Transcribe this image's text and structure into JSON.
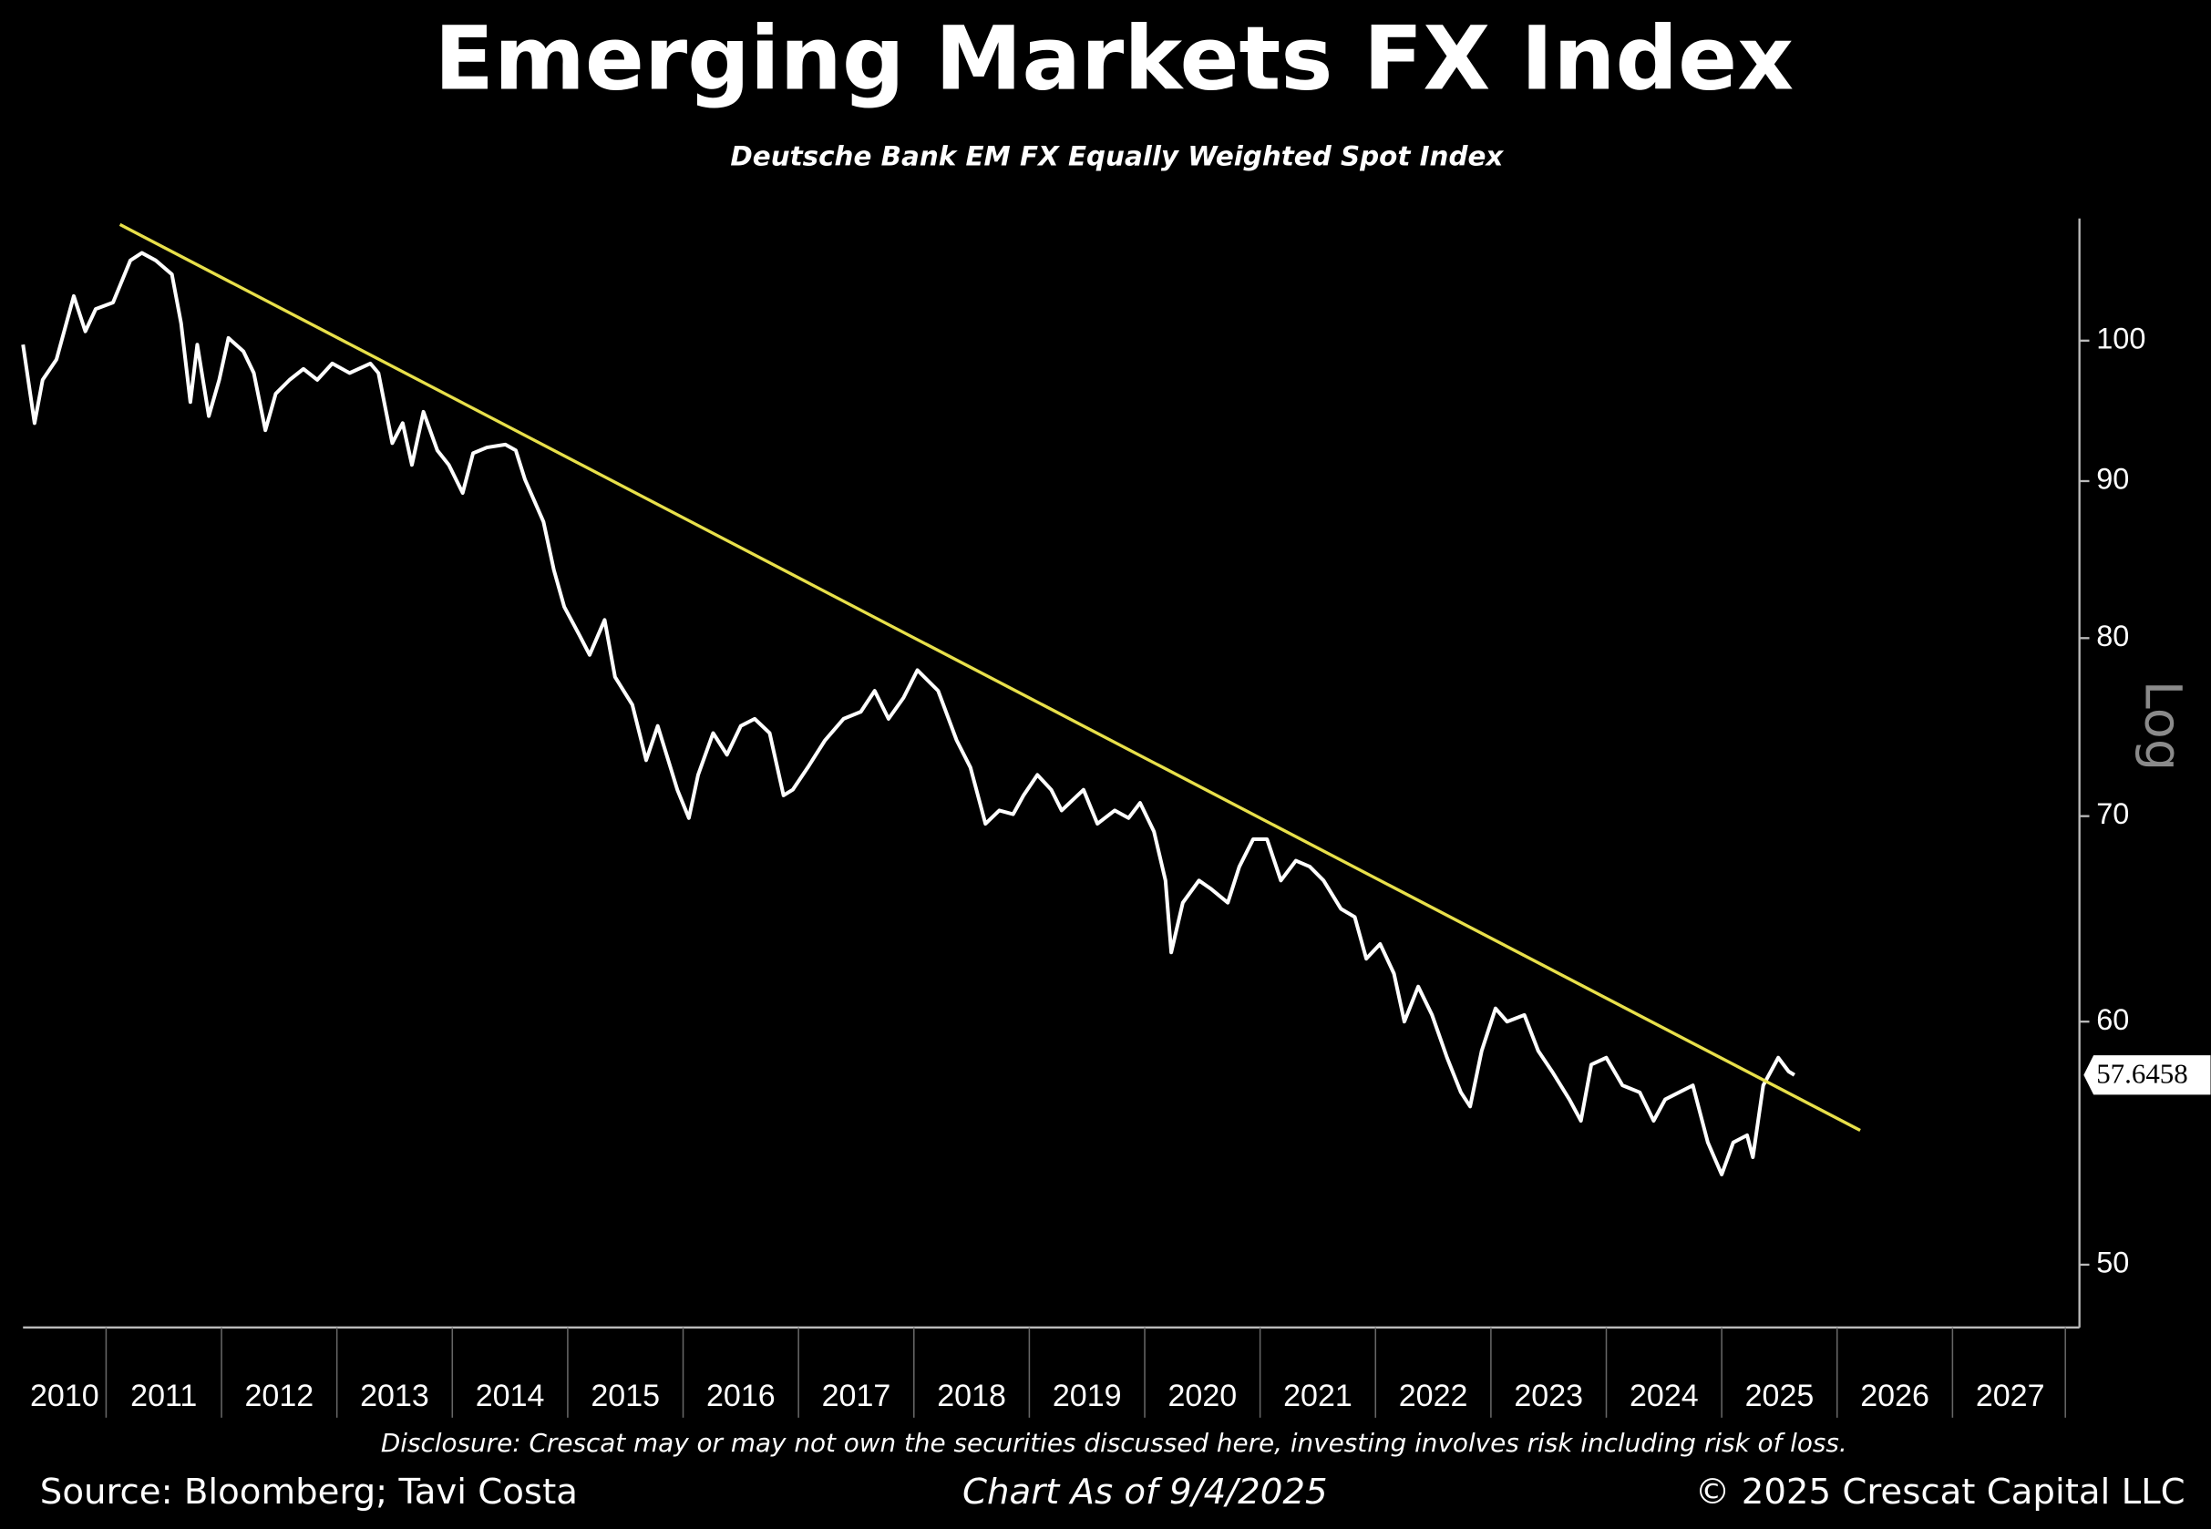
{
  "chart_data": {
    "type": "line",
    "title": "Emerging Markets FX Index",
    "subtitle": "Deutsche Bank EM FX Equally Weighted Spot Index",
    "y_axis_label": "Log",
    "log_scale": true,
    "grid": false,
    "x": [
      2010.28,
      2010.38,
      2010.45,
      2010.57,
      2010.72,
      2010.82,
      2010.91,
      2011.06,
      2011.21,
      2011.31,
      2011.43,
      2011.57,
      2011.65,
      2011.73,
      2011.79,
      2011.89,
      2011.98,
      2012.06,
      2012.19,
      2012.28,
      2012.38,
      2012.47,
      2012.59,
      2012.71,
      2012.83,
      2012.96,
      2013.11,
      2013.29,
      2013.36,
      2013.48,
      2013.57,
      2013.65,
      2013.75,
      2013.87,
      2013.97,
      2014.09,
      2014.18,
      2014.3,
      2014.46,
      2014.55,
      2014.63,
      2014.79,
      2014.88,
      2014.97,
      2015.1,
      2015.19,
      2015.32,
      2015.41,
      2015.56,
      2015.68,
      2015.78,
      2015.95,
      2016.05,
      2016.13,
      2016.26,
      2016.38,
      2016.5,
      2016.62,
      2016.75,
      2016.87,
      2016.95,
      2017.08,
      2017.23,
      2017.39,
      2017.54,
      2017.66,
      2017.78,
      2017.91,
      2018.03,
      2018.21,
      2018.37,
      2018.49,
      2018.62,
      2018.74,
      2018.86,
      2018.95,
      2019.07,
      2019.19,
      2019.28,
      2019.47,
      2019.59,
      2019.74,
      2019.86,
      2019.96,
      2020.08,
      2020.18,
      2020.23,
      2020.33,
      2020.47,
      2020.57,
      2020.72,
      2020.82,
      2020.94,
      2021.06,
      2021.18,
      2021.31,
      2021.43,
      2021.55,
      2021.7,
      2021.82,
      2021.92,
      2022.04,
      2022.16,
      2022.25,
      2022.37,
      2022.49,
      2022.62,
      2022.74,
      2022.82,
      2022.92,
      2023.04,
      2023.14,
      2023.29,
      2023.41,
      2023.53,
      2023.68,
      2023.78,
      2023.87,
      2024.0,
      2024.14,
      2024.29,
      2024.41,
      2024.51,
      2024.63,
      2024.75,
      2024.88,
      2025.0,
      2025.1,
      2025.22,
      2025.27,
      2025.36,
      2025.49,
      2025.58,
      2025.63
    ],
    "series": [
      {
        "color": "#ffffff",
        "values": [
          99.7,
          94.0,
          97.1,
          98.6,
          103.4,
          100.7,
          102.4,
          102.9,
          106.2,
          106.8,
          106.2,
          105.1,
          101.3,
          95.5,
          99.7,
          94.5,
          97.1,
          100.2,
          99.2,
          97.6,
          93.5,
          96.1,
          97.1,
          97.9,
          97.1,
          98.3,
          97.6,
          98.3,
          97.6,
          92.6,
          94.0,
          91.1,
          94.8,
          92.1,
          91.1,
          89.2,
          91.9,
          92.3,
          92.5,
          92.1,
          90.1,
          87.3,
          84.2,
          81.9,
          80.2,
          79.0,
          81.1,
          77.7,
          76.1,
          73.0,
          74.9,
          71.4,
          69.9,
          72.2,
          74.5,
          73.3,
          74.9,
          75.3,
          74.5,
          71.1,
          71.4,
          72.6,
          74.1,
          75.3,
          75.7,
          76.9,
          75.3,
          76.5,
          78.1,
          76.9,
          74.1,
          72.6,
          69.6,
          70.3,
          70.1,
          71.1,
          72.2,
          71.4,
          70.3,
          71.4,
          69.6,
          70.3,
          69.9,
          70.7,
          69.2,
          66.7,
          63.2,
          65.6,
          66.7,
          66.3,
          65.6,
          67.4,
          68.8,
          68.8,
          66.7,
          67.7,
          67.4,
          66.7,
          65.3,
          64.9,
          62.9,
          63.6,
          62.2,
          60.0,
          61.6,
          60.3,
          58.4,
          56.9,
          56.3,
          58.7,
          60.6,
          60.0,
          60.3,
          58.7,
          57.8,
          56.6,
          55.7,
          58.1,
          58.4,
          57.2,
          56.9,
          55.7,
          56.6,
          56.9,
          57.2,
          54.8,
          53.5,
          54.8,
          55.1,
          54.2,
          57.2,
          58.4,
          57.8,
          57.6458
        ]
      }
    ],
    "trendline": {
      "color": "#e8e04a",
      "x": [
        2011.12,
        2026.2
      ],
      "values": [
        109.1,
        55.3
      ]
    },
    "xlim": [
      2010.28,
      2028.1
    ],
    "xticks": [
      2010,
      2011,
      2012,
      2013,
      2014,
      2015,
      2016,
      2017,
      2018,
      2019,
      2020,
      2021,
      2022,
      2023,
      2024,
      2025,
      2026,
      2027
    ],
    "ylim": [
      47.7,
      109.6
    ],
    "yticks": [
      50,
      60,
      70,
      80,
      90,
      100
    ]
  },
  "footer": {
    "disclosure": "Disclosure: Crescat may or may not own the securities discussed here, investing involves risk including risk of loss.",
    "source": "Source: Bloomberg; Tavi Costa",
    "as_of": "Chart As of 9/4/2025",
    "copyright": "© 2025 Crescat Capital LLC"
  }
}
